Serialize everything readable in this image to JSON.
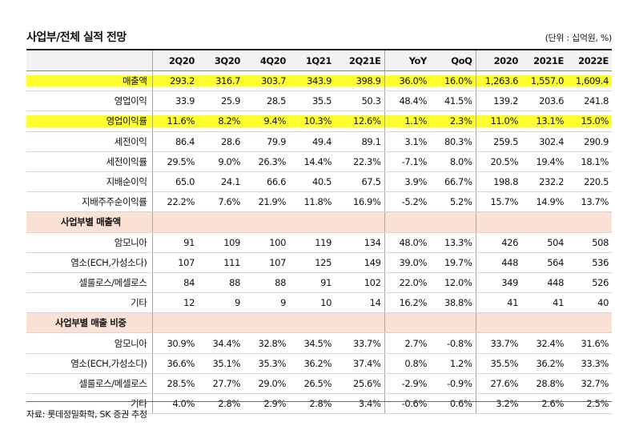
{
  "title": "사업부/전체 실적 전망",
  "unit": "(단위 : 십억원, %)",
  "columns": [
    "2Q20",
    "3Q20",
    "4Q20",
    "1Q21",
    "2Q21E",
    "YoY",
    "QoQ",
    "2020",
    "2021E",
    "2022E"
  ],
  "rows": [
    {
      "label": "매출액",
      "values": [
        "293.2",
        "316.7",
        "303.7",
        "343.9",
        "398.9",
        "36.0%",
        "16.0%",
        "1,263.6",
        "1,557.0",
        "1,609.4"
      ]
    },
    {
      "label": "영업이익",
      "values": [
        "33.9",
        "25.9",
        "28.5",
        "35.5",
        "50.3",
        "48.4%",
        "41.5%",
        "139.2",
        "203.6",
        "241.8"
      ]
    },
    {
      "label": "영업이익률",
      "values": [
        "11.6%",
        "8.2%",
        "9.4%",
        "10.3%",
        "12.6%",
        "1.1%",
        "2.3%",
        "11.0%",
        "13.1%",
        "15.0%"
      ]
    },
    {
      "label": "세전이익",
      "values": [
        "86.4",
        "28.6",
        "79.9",
        "49.4",
        "89.1",
        "3.1%",
        "80.3%",
        "259.5",
        "302.4",
        "290.9"
      ]
    },
    {
      "label": "세전이익률",
      "values": [
        "29.5%",
        "9.0%",
        "26.3%",
        "14.4%",
        "22.3%",
        "-7.1%",
        "8.0%",
        "20.5%",
        "19.4%",
        "18.1%"
      ]
    },
    {
      "label": "지배순이익",
      "values": [
        "65.0",
        "24.1",
        "66.6",
        "40.5",
        "67.5",
        "3.9%",
        "66.7%",
        "198.8",
        "232.2",
        "220.5"
      ]
    },
    {
      "label": "지배주주순이익률",
      "values": [
        "22.2%",
        "7.6%",
        "21.9%",
        "11.8%",
        "16.9%",
        "-5.2%",
        "5.2%",
        "15.7%",
        "14.9%",
        "13.7%"
      ]
    }
  ],
  "section1": {
    "title": "사업부별 매출액",
    "rows": [
      {
        "label": "암모니아",
        "values": [
          "91",
          "109",
          "100",
          "119",
          "134",
          "48.0%",
          "13.3%",
          "426",
          "504",
          "508"
        ]
      },
      {
        "label": "염소(ECH,가성소다)",
        "values": [
          "107",
          "111",
          "107",
          "125",
          "149",
          "39.0%",
          "19.7%",
          "448",
          "564",
          "536"
        ]
      },
      {
        "label": "셀룰로스/메셀로스",
        "values": [
          "84",
          "88",
          "88",
          "91",
          "102",
          "22.0%",
          "12.0%",
          "349",
          "448",
          "526"
        ]
      },
      {
        "label": "기타",
        "values": [
          "12",
          "9",
          "9",
          "10",
          "14",
          "16.2%",
          "38.8%",
          "41",
          "41",
          "40"
        ]
      }
    ]
  },
  "section2": {
    "title": "사업부별 매출 비중",
    "rows": [
      {
        "label": "암모니아",
        "values": [
          "30.9%",
          "34.4%",
          "32.8%",
          "34.5%",
          "33.7%",
          "2.7%",
          "-0.8%",
          "33.7%",
          "32.4%",
          "31.6%"
        ]
      },
      {
        "label": "염소(ECH,가성소다)",
        "values": [
          "36.6%",
          "35.1%",
          "35.3%",
          "36.2%",
          "37.4%",
          "0.8%",
          "1.2%",
          "35.5%",
          "36.2%",
          "33.3%"
        ]
      },
      {
        "label": "셀룰로스/메셀로스",
        "values": [
          "28.5%",
          "27.7%",
          "29.0%",
          "26.5%",
          "25.6%",
          "-2.9%",
          "-0.9%",
          "27.6%",
          "28.8%",
          "32.7%"
        ]
      },
      {
        "label": "기타",
        "values": [
          "4.0%",
          "2.8%",
          "2.9%",
          "2.8%",
          "3.4%",
          "-0.6%",
          "0.6%",
          "3.2%",
          "2.6%",
          "2.5%"
        ]
      }
    ]
  },
  "highlighted_rows": [
    "매출액",
    "영업이익률"
  ],
  "highlight_color": "#ffff2e",
  "section_header_color": "#fbe1d3",
  "source": "자료: 롯데정밀화학, SK 증권 추정"
}
